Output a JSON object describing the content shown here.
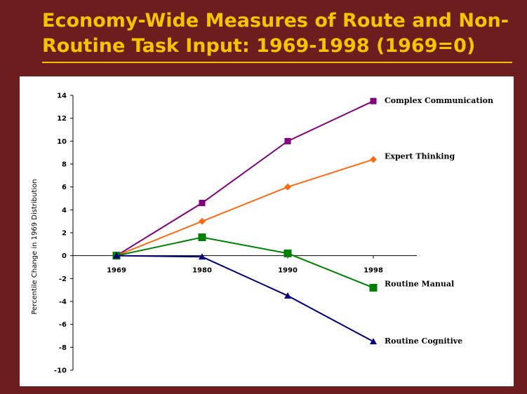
{
  "title": {
    "line1": "Economy-Wide Measures of Route and Non-",
    "line2": "Routine Task Input: 1969-1998 (1969=0)"
  },
  "colors": {
    "background": "#6e1d1f",
    "title": "#f5c400",
    "panel": "#ffffff"
  },
  "chart_data": {
    "type": "line",
    "x": [
      "1969",
      "1980",
      "1990",
      "1998"
    ],
    "ylabel": "Percentile Change in 1969 Distribution",
    "xlabel": "",
    "ylim": [
      -10,
      14
    ],
    "yticks": [
      14,
      12,
      10,
      8,
      6,
      4,
      2,
      0,
      -2,
      -4,
      -6,
      -8,
      -10
    ],
    "grid": false,
    "legend": "labels at line ends",
    "series": [
      {
        "name": "Complex Communication",
        "values": [
          0,
          4.6,
          10.0,
          13.5
        ],
        "color": "#800080",
        "marker": "square"
      },
      {
        "name": "Expert Thinking",
        "values": [
          0,
          3.0,
          6.0,
          8.4
        ],
        "color": "#ff6a13",
        "marker": "diamond"
      },
      {
        "name": "Routine Manual",
        "values": [
          0,
          1.6,
          0.2,
          -2.8
        ],
        "color": "#008000",
        "marker": "square"
      },
      {
        "name": "Routine Cognitive",
        "values": [
          0,
          -0.1,
          -3.5,
          -7.5
        ],
        "color": "#000080",
        "marker": "triangle"
      }
    ]
  }
}
